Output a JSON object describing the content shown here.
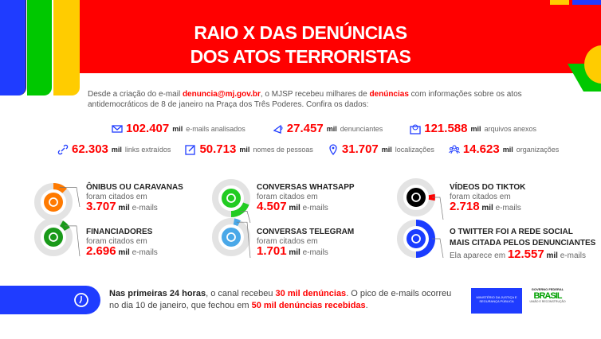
{
  "title": {
    "line1": "RAIO X DAS DENÚNCIAS",
    "line2": "DOS ATOS TERRORISTAS"
  },
  "intro": {
    "p1": "Desde a criação do e-mail ",
    "email": "denuncia@mj.gov.br",
    "p2": ", o MJSP recebeu milhares de ",
    "highlight": "denúncias",
    "p3": " com informações sobre os atos antidemocráticos de 8 de janeiro na Praça dos Três Poderes. Confira os dados:"
  },
  "stats": [
    {
      "icon": "envelope-icon",
      "value": "102.407",
      "unit": "mil",
      "label": "e-mails analisados"
    },
    {
      "icon": "megaphone-icon",
      "value": "27.457",
      "unit": "mil",
      "label": "denunciantes"
    },
    {
      "icon": "attachment-mail-icon",
      "value": "121.588",
      "unit": "mil",
      "label": "arquivos anexos"
    },
    {
      "icon": "link-icon",
      "value": "62.303",
      "unit": "mil",
      "label": "links extraídos"
    },
    {
      "icon": "edit-icon",
      "value": "50.713",
      "unit": "mil",
      "label": "nomes de pessoas"
    },
    {
      "icon": "location-pin-icon",
      "value": "31.707",
      "unit": "mil",
      "label": "localizações"
    },
    {
      "icon": "people-icon",
      "value": "14.623",
      "unit": "mil",
      "label": "organizações"
    }
  ],
  "cards": [
    {
      "title": "ÔNIBUS OU CARAVANAS",
      "sub": "foram citados em",
      "value": "3.707",
      "unit": "mil",
      "suffix": "e-mails",
      "color": "#ff7a00",
      "icon": "bus-icon"
    },
    {
      "title": "FINANCIADORES",
      "sub": "foram citados em",
      "value": "2.696",
      "unit": "mil",
      "suffix": "e-mails",
      "color": "#1a9a1a",
      "icon": "dollar-icon"
    },
    {
      "title": "CONVERSAS WHATSAPP",
      "sub": "foram citados em",
      "value": "4.507",
      "unit": "mil",
      "suffix": "e-mails",
      "color": "#22cc22",
      "icon": "whatsapp-icon"
    },
    {
      "title": "CONVERSAS TELEGRAM",
      "sub": "foram citados em",
      "value": "1.701",
      "unit": "mil",
      "suffix": "e-mails",
      "color": "#4aa8e8",
      "icon": "telegram-icon"
    },
    {
      "title": "VÍDEOS DO TIKTOK",
      "sub": "foram citados em",
      "value": "2.718",
      "unit": "mil",
      "suffix": "e-mails",
      "color": "#ff0000",
      "icon": "tiktok-icon"
    },
    {
      "title1": "O TWITTER FOI A REDE SOCIAL",
      "title2": "MAIS CITADA PELOS DENUNCIANTES",
      "sub": "Ela aparece em",
      "value": "12.557",
      "unit": "mil",
      "suffix": "e-mails",
      "color": "#1a3cff",
      "icon": "twitter-icon"
    }
  ],
  "footer": {
    "b1": "Nas primeiras 24 horas",
    "t1": ", o canal recebeu ",
    "r1": "30 mil denúncias",
    "t2": ". O pico de e-mails ocorreu no dia 10 de janeiro, que fechou em ",
    "r2": "50 mil denúncias recebidas",
    "t3": "."
  },
  "logos": {
    "ministry": "MINISTÉRIO DA JUSTIÇA E SEGURANÇA PÚBLICA",
    "gov": "GOVERNO FEDERAL",
    "brasil": "BRASIL",
    "motto": "UNIÃO E RECONSTRUÇÃO"
  },
  "colors": {
    "red": "#ff0000",
    "blue": "#1f3cff",
    "green": "#00c800",
    "yellow": "#ffcc00"
  }
}
